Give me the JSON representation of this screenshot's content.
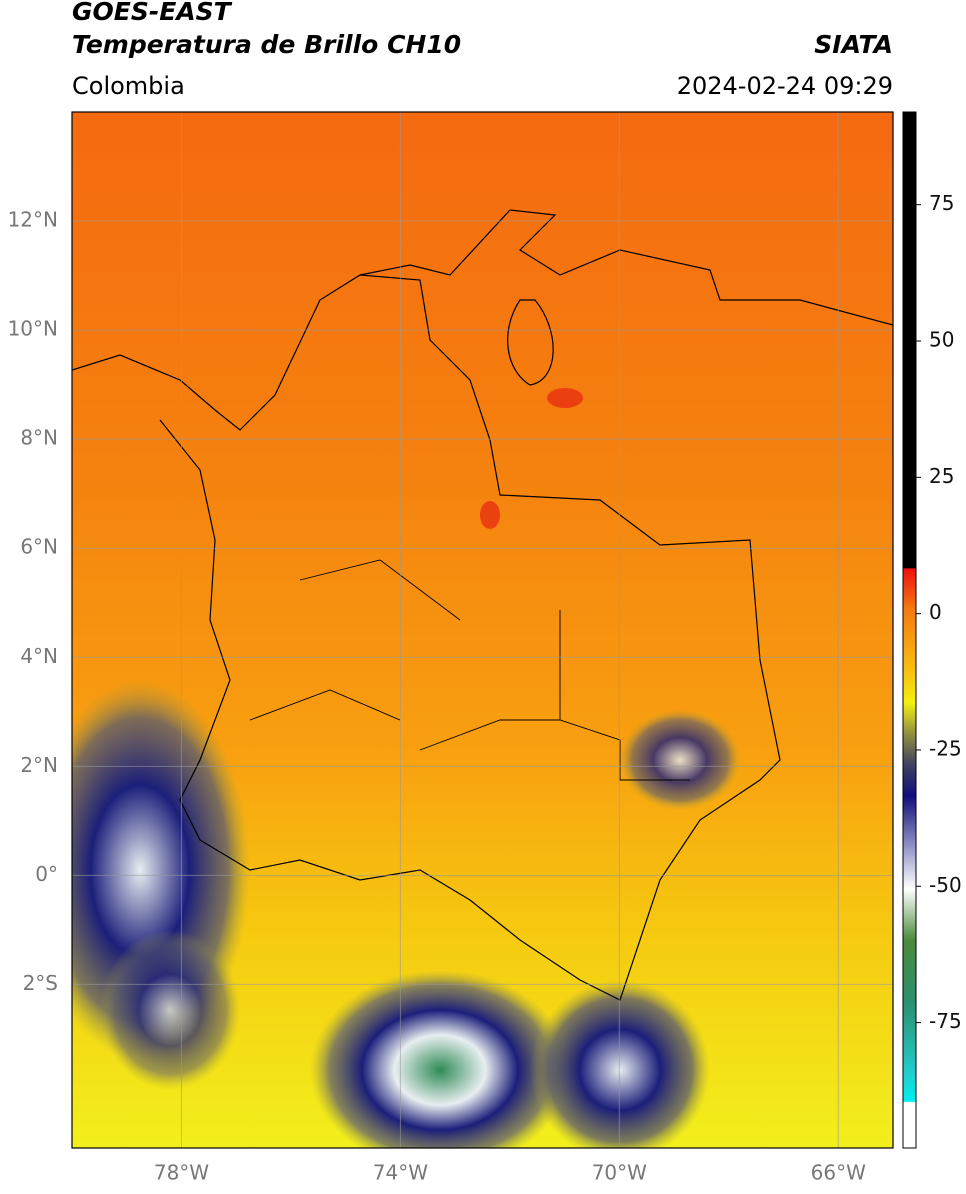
{
  "header": {
    "title": "GOES-EAST",
    "subtitle": "Temperatura de Brillo CH10",
    "region": "Colombia",
    "source": "SIATA",
    "timestamp": "2024-02-24 09:29"
  },
  "map": {
    "lonlim": [
      -80,
      -65
    ],
    "latlim": [
      -5,
      14
    ],
    "lat_ticks": [
      {
        "value": 12,
        "label": "12°N"
      },
      {
        "value": 10,
        "label": "10°N"
      },
      {
        "value": 8,
        "label": "8°N"
      },
      {
        "value": 6,
        "label": "6°N"
      },
      {
        "value": 4,
        "label": "4°N"
      },
      {
        "value": 2,
        "label": "2°N"
      },
      {
        "value": 0,
        "label": "0°"
      },
      {
        "value": -2,
        "label": "2°S"
      }
    ],
    "lon_ticks": [
      {
        "value": -78,
        "label": "78°W"
      },
      {
        "value": -74,
        "label": "74°W"
      },
      {
        "value": -70,
        "label": "70°W"
      },
      {
        "value": -66,
        "label": "66°W"
      }
    ],
    "grid": true
  },
  "colorbar": {
    "lim": [
      -98,
      92
    ],
    "ticks": [
      75,
      50,
      25,
      0,
      -25,
      -50,
      -75
    ]
  }
}
